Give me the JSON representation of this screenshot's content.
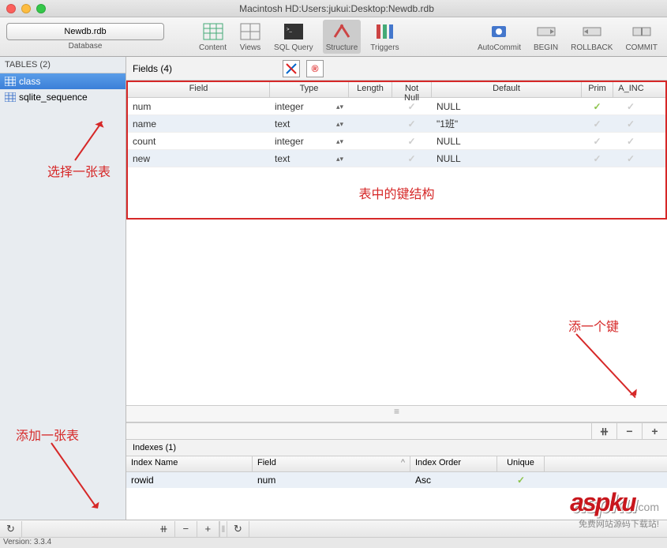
{
  "window": {
    "title": "Macintosh HD:Users:jukui:Desktop:Newdb.rdb"
  },
  "toolbar": {
    "db_button": "Newdb.rdb",
    "db_label": "Database",
    "items": [
      {
        "label": "Content"
      },
      {
        "label": "Views"
      },
      {
        "label": "SQL Query"
      },
      {
        "label": "Structure",
        "active": true
      },
      {
        "label": "Triggers"
      }
    ],
    "right": [
      {
        "label": "AutoCommit"
      },
      {
        "label": "BEGIN"
      },
      {
        "label": "ROLLBACK"
      },
      {
        "label": "COMMIT"
      }
    ]
  },
  "sidebar": {
    "header": "TABLES (2)",
    "items": [
      {
        "name": "class",
        "selected": true
      },
      {
        "name": "sqlite_sequence",
        "selected": false
      }
    ]
  },
  "fields": {
    "header": "Fields (4)",
    "columns": [
      "Field",
      "Type",
      "Length",
      "Not Null",
      "Default",
      "Prim",
      "A_INC"
    ],
    "rows": [
      {
        "field": "num",
        "type": "integer",
        "length": "",
        "notnull": false,
        "default": "NULL",
        "prim": true,
        "ainc": false
      },
      {
        "field": "name",
        "type": "text",
        "length": "",
        "notnull": false,
        "default": "\"1班\"",
        "prim": false,
        "ainc": false
      },
      {
        "field": "count",
        "type": "integer",
        "length": "",
        "notnull": false,
        "default": "NULL",
        "prim": false,
        "ainc": false
      },
      {
        "field": "new",
        "type": "text",
        "length": "",
        "notnull": false,
        "default": "NULL",
        "prim": false,
        "ainc": false
      }
    ]
  },
  "indexes": {
    "header": "Indexes (1)",
    "columns": [
      "Index Name",
      "Field",
      "Index Order",
      "Unique"
    ],
    "rows": [
      {
        "name": "rowid",
        "field": "num",
        "order": "Asc",
        "unique": true
      }
    ]
  },
  "annotations": {
    "select_table": "选择一张表",
    "table_struct": "表中的键结构",
    "add_key": "添一个键",
    "add_table": "添加一张表"
  },
  "status": {
    "version": "Version: 3.3.4"
  },
  "logo": {
    "text": "aspku",
    "domain": ".com",
    "tagline": "免费网站源码下载站!"
  },
  "colors": {
    "accent_red": "#d62828",
    "select_blue": "#3b7fd8",
    "check_green": "#8bc34a"
  }
}
